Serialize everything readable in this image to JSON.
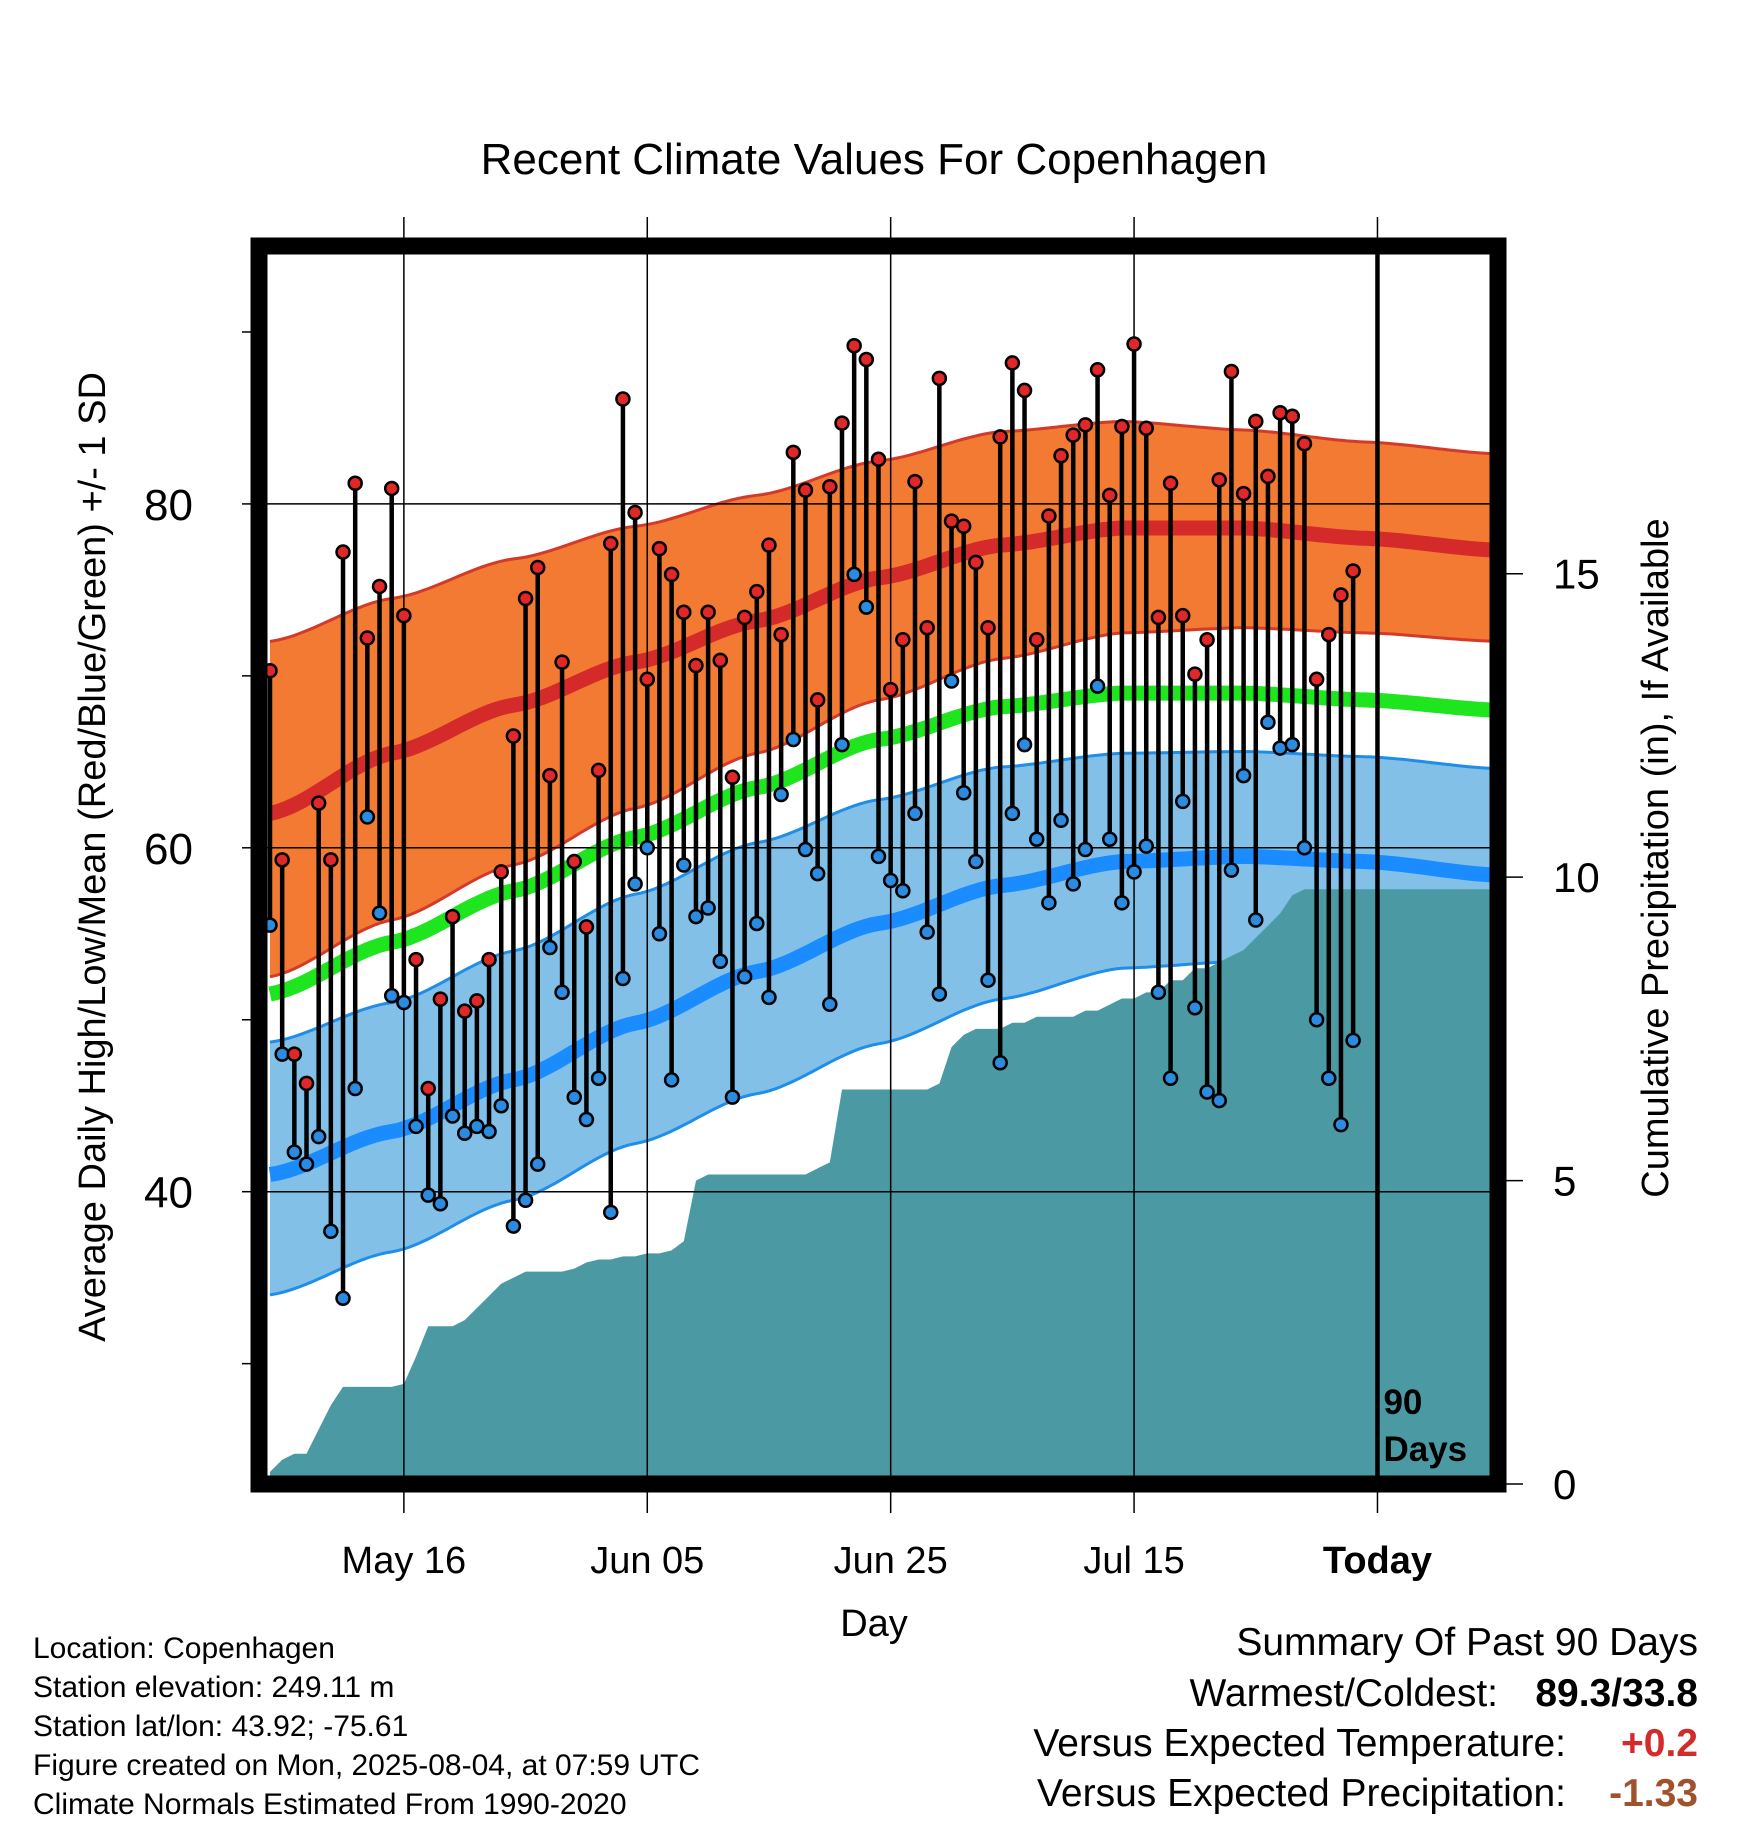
{
  "chart_data": {
    "type": "line",
    "title": "Recent Climate Values For Copenhagen",
    "xlabel": "Day",
    "ylabel": "Average Daily High/Low/Mean (Red/Blue/Green) +/- 1 SD",
    "y2label": "Cumulative Precipitation (in), If Available",
    "ylim": [
      23,
      95
    ],
    "y2lim": [
      0,
      20.4
    ],
    "y_ticks": [
      "40",
      "60",
      "80"
    ],
    "y2_ticks": [
      "0",
      "5",
      "10",
      "15"
    ],
    "x_tick_labels": [
      "May 16",
      "Jun 05",
      "Jun 25",
      "Jul 15",
      "Today"
    ],
    "x_tick_days": [
      11,
      31,
      51,
      71,
      91
    ],
    "x_range_days": [
      0,
      101
    ],
    "today_marker_day": 91,
    "today_marker_label": [
      "90",
      "Days"
    ],
    "grid": true,
    "normals": {
      "high_mean": [
        [
          0,
          62
        ],
        [
          10,
          65.5
        ],
        [
          20,
          68.3
        ],
        [
          30,
          70.8
        ],
        [
          40,
          73.2
        ],
        [
          50,
          75.7
        ],
        [
          60,
          77.6
        ],
        [
          70,
          78.6
        ],
        [
          80,
          78.6
        ],
        [
          90,
          78
        ],
        [
          101,
          77.3
        ]
      ],
      "high_sd_upper": [
        [
          0,
          72
        ],
        [
          10,
          74.5
        ],
        [
          20,
          76.8
        ],
        [
          30,
          78.7
        ],
        [
          40,
          80.5
        ],
        [
          50,
          82.5
        ],
        [
          60,
          84.2
        ],
        [
          70,
          84.8
        ],
        [
          80,
          84.3
        ],
        [
          90,
          83.6
        ],
        [
          101,
          82.9
        ]
      ],
      "high_sd_lower": [
        [
          0,
          52.5
        ],
        [
          10,
          55.8
        ],
        [
          20,
          59
        ],
        [
          30,
          62.3
        ],
        [
          40,
          65.5
        ],
        [
          50,
          68.6
        ],
        [
          60,
          71
        ],
        [
          70,
          72.5
        ],
        [
          80,
          72.8
        ],
        [
          90,
          72.5
        ],
        [
          101,
          72
        ]
      ],
      "mean": [
        [
          0,
          51.5
        ],
        [
          10,
          54.5
        ],
        [
          20,
          57.5
        ],
        [
          30,
          60.6
        ],
        [
          40,
          63.5
        ],
        [
          50,
          66.3
        ],
        [
          60,
          68.2
        ],
        [
          70,
          69
        ],
        [
          80,
          69
        ],
        [
          90,
          68.6
        ],
        [
          101,
          68
        ]
      ],
      "low_mean": [
        [
          0,
          41
        ],
        [
          10,
          43.5
        ],
        [
          20,
          46.5
        ],
        [
          30,
          49.8
        ],
        [
          40,
          52.8
        ],
        [
          50,
          55.6
        ],
        [
          60,
          57.8
        ],
        [
          70,
          59.2
        ],
        [
          80,
          59.5
        ],
        [
          90,
          59.2
        ],
        [
          101,
          58.4
        ]
      ],
      "low_sd_upper": [
        [
          0,
          48.7
        ],
        [
          10,
          51
        ],
        [
          20,
          54
        ],
        [
          30,
          57.3
        ],
        [
          40,
          60.3
        ],
        [
          50,
          62.8
        ],
        [
          60,
          64.7
        ],
        [
          70,
          65.5
        ],
        [
          80,
          65.6
        ],
        [
          90,
          65.3
        ],
        [
          101,
          64.6
        ]
      ],
      "low_sd_lower": [
        [
          0,
          34
        ],
        [
          10,
          36.5
        ],
        [
          20,
          39.5
        ],
        [
          30,
          42.8
        ],
        [
          40,
          45.7
        ],
        [
          50,
          48.6
        ],
        [
          60,
          51.2
        ],
        [
          70,
          53
        ],
        [
          80,
          53.4
        ],
        [
          90,
          53.2
        ],
        [
          101,
          52.3
        ]
      ]
    },
    "daily_high": [
      70.3,
      59.3,
      48,
      46.3,
      62.6,
      59.3,
      77.2,
      81.2,
      72.2,
      75.2,
      80.9,
      73.5,
      53.5,
      46,
      51.2,
      56,
      50.5,
      51.1,
      53.5,
      58.6,
      66.5,
      74.5,
      76.3,
      64.2,
      70.8,
      59.2,
      55.4,
      64.5,
      77.7,
      86.1,
      79.5,
      69.8,
      77.4,
      75.9,
      73.7,
      70.6,
      73.7,
      70.9,
      64.1,
      73.4,
      74.9,
      77.6,
      72.4,
      83,
      80.8,
      68.6,
      81,
      84.7,
      89.2,
      88.4,
      82.6,
      69.2,
      72.1,
      81.3,
      72.8,
      87.3,
      79,
      78.7,
      76.6,
      72.8,
      83.9,
      88.2,
      86.6,
      72.1,
      79.3,
      82.8,
      84,
      84.6,
      87.8,
      80.5,
      84.5,
      89.3,
      84.4,
      73.4,
      81.2,
      73.5,
      70.1,
      72.1,
      81.4,
      87.7,
      80.6,
      84.8,
      81.6,
      85.3,
      85.1,
      83.5,
      69.8,
      72.4,
      74.7,
      76.1
    ],
    "daily_low": [
      55.5,
      48,
      42.3,
      41.6,
      43.2,
      37.7,
      33.8,
      46,
      61.8,
      56.2,
      51.4,
      51,
      43.8,
      39.8,
      39.3,
      44.4,
      43.4,
      43.8,
      43.5,
      45,
      38,
      39.5,
      41.6,
      54.2,
      51.6,
      45.5,
      44.2,
      46.6,
      38.8,
      52.4,
      57.9,
      60,
      55,
      46.5,
      59,
      56,
      56.5,
      53.4,
      45.5,
      52.5,
      55.6,
      51.3,
      63.1,
      66.3,
      59.9,
      58.5,
      50.9,
      66,
      75.9,
      74,
      59.5,
      58.1,
      57.5,
      62,
      55.1,
      51.5,
      69.7,
      63.2,
      59.2,
      52.3,
      47.5,
      62,
      66,
      60.5,
      56.8,
      61.6,
      57.9,
      59.9,
      69.4,
      60.5,
      56.8,
      58.6,
      60.1,
      51.6,
      46.6,
      62.7,
      50.7,
      45.8,
      45.3,
      58.7,
      64.2,
      55.8,
      67.3,
      65.8,
      66,
      60,
      50,
      46.6,
      43.9,
      48.8
    ],
    "cumulative_precip": [
      [
        0,
        0.2
      ],
      [
        1,
        0.4
      ],
      [
        2,
        0.5
      ],
      [
        3,
        0.5
      ],
      [
        4,
        0.9
      ],
      [
        5,
        1.3
      ],
      [
        6,
        1.6
      ],
      [
        7,
        1.6
      ],
      [
        8,
        1.6
      ],
      [
        9,
        1.6
      ],
      [
        10,
        1.6
      ],
      [
        11,
        1.65
      ],
      [
        12,
        2.1
      ],
      [
        13,
        2.6
      ],
      [
        14,
        2.6
      ],
      [
        15,
        2.6
      ],
      [
        16,
        2.7
      ],
      [
        17,
        2.9
      ],
      [
        18,
        3.1
      ],
      [
        19,
        3.3
      ],
      [
        20,
        3.4
      ],
      [
        21,
        3.5
      ],
      [
        22,
        3.5
      ],
      [
        23,
        3.5
      ],
      [
        24,
        3.5
      ],
      [
        25,
        3.55
      ],
      [
        26,
        3.65
      ],
      [
        27,
        3.7
      ],
      [
        28,
        3.7
      ],
      [
        29,
        3.75
      ],
      [
        30,
        3.75
      ],
      [
        31,
        3.8
      ],
      [
        32,
        3.8
      ],
      [
        33,
        3.85
      ],
      [
        34,
        4
      ],
      [
        35,
        5
      ],
      [
        36,
        5.1
      ],
      [
        37,
        5.1
      ],
      [
        38,
        5.1
      ],
      [
        39,
        5.1
      ],
      [
        40,
        5.1
      ],
      [
        41,
        5.1
      ],
      [
        42,
        5.1
      ],
      [
        43,
        5.1
      ],
      [
        44,
        5.1
      ],
      [
        45,
        5.2
      ],
      [
        46,
        5.3
      ],
      [
        47,
        6.5
      ],
      [
        48,
        6.5
      ],
      [
        49,
        6.5
      ],
      [
        50,
        6.5
      ],
      [
        51,
        6.5
      ],
      [
        52,
        6.5
      ],
      [
        53,
        6.5
      ],
      [
        54,
        6.5
      ],
      [
        55,
        6.6
      ],
      [
        56,
        7.2
      ],
      [
        57,
        7.4
      ],
      [
        58,
        7.5
      ],
      [
        59,
        7.5
      ],
      [
        60,
        7.5
      ],
      [
        61,
        7.6
      ],
      [
        62,
        7.6
      ],
      [
        63,
        7.7
      ],
      [
        64,
        7.7
      ],
      [
        65,
        7.7
      ],
      [
        66,
        7.7
      ],
      [
        67,
        7.8
      ],
      [
        68,
        7.8
      ],
      [
        69,
        7.9
      ],
      [
        70,
        8
      ],
      [
        71,
        8
      ],
      [
        72,
        8.1
      ],
      [
        73,
        8.1
      ],
      [
        74,
        8.3
      ],
      [
        75,
        8.3
      ],
      [
        76,
        8.5
      ],
      [
        77,
        8.5
      ],
      [
        78,
        8.6
      ],
      [
        79,
        8.7
      ],
      [
        80,
        8.8
      ],
      [
        81,
        9
      ],
      [
        82,
        9.2
      ],
      [
        83,
        9.4
      ],
      [
        84,
        9.7
      ],
      [
        85,
        9.8
      ],
      [
        86,
        9.8
      ],
      [
        87,
        9.8
      ],
      [
        88,
        9.8
      ],
      [
        89,
        9.8
      ],
      [
        90,
        9.8
      ],
      [
        91,
        9.8
      ],
      [
        101,
        9.8
      ]
    ],
    "colors": {
      "high_band": "#f27a32",
      "high_band_edge": "#d43a2a",
      "high_line": "#d42a2a",
      "mean_line": "#1ee51e",
      "low_band": "#82c0e8",
      "low_band_edge": "#1f8ee8",
      "low_line": "#1a8cff",
      "precip": "#4b9aa3",
      "high_dot": "#e02828",
      "low_dot": "#2a8be0"
    }
  },
  "info": {
    "location": "Location: Copenhagen",
    "elevation": "Station elevation: 249.11 m",
    "latlon": "Station lat/lon: 43.92; -75.61",
    "created": "Figure created on Mon, 2025-08-04, at 07:59 UTC",
    "normals": "Climate Normals Estimated From 1990-2020"
  },
  "summary": {
    "title": "Summary Of Past 90 Days",
    "warmest_coldest_label": "Warmest/Coldest:",
    "warmest_coldest_value": "89.3/33.8",
    "temp_label": "Versus Expected Temperature:",
    "temp_value": "+0.2",
    "temp_color": "#d42a2a",
    "precip_label": "Versus Expected Precipitation:",
    "precip_value": "-1.33",
    "precip_color": "#a0522d"
  }
}
